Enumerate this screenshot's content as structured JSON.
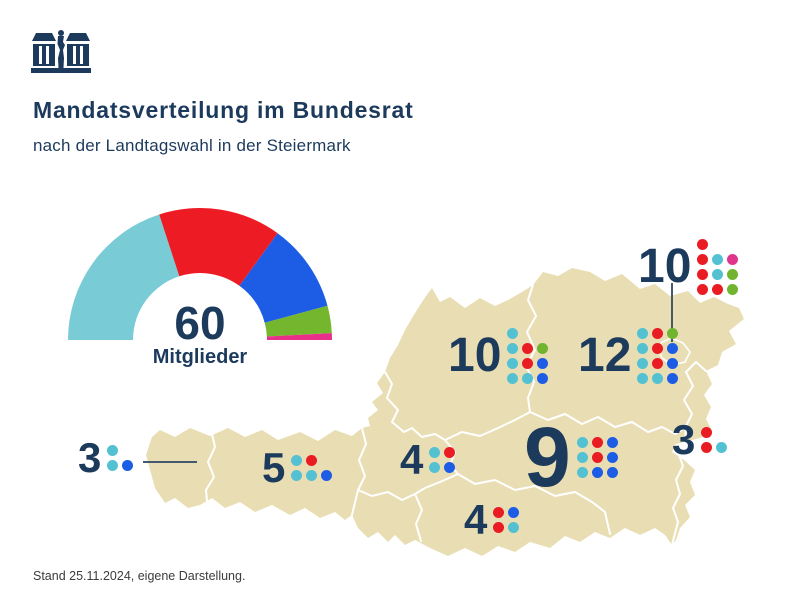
{
  "header": {
    "title": "Mandatsverteilung im Bundesrat",
    "subtitle": "nach der Landtagswahl in der Steiermark",
    "logo": "parliament-icon"
  },
  "footer": {
    "note": "Stand 25.11.2024, eigene Darstellung."
  },
  "colors": {
    "navy": "#1c3a5c",
    "map_fill": "#e9deb3",
    "map_border": "#ffffff",
    "teal": "#54c1d3",
    "teal_light": "#79cbd6",
    "red": "#e81c22",
    "blue": "#1d5ce5",
    "green": "#70b42f",
    "pink": "#e0358d",
    "leader_line": "#44586e",
    "footer_text": "#3c3c3c"
  },
  "chart_data": [
    {
      "type": "pie",
      "shape": "half-donut",
      "title": "Mandatsverteilung im Bundesrat",
      "subtitle": "nach der Landtagswahl in der Steiermark",
      "total": 60,
      "center_value": "60",
      "center_label": "Mitglieder",
      "legend_position": "none",
      "series": [
        {
          "name": "teal",
          "color": "#79cbd6",
          "value": 24
        },
        {
          "name": "red",
          "color": "#ed1c24",
          "value": 18
        },
        {
          "name": "blue",
          "color": "#1d5ce5",
          "value": 13
        },
        {
          "name": "green",
          "color": "#74b72e",
          "value": 4
        },
        {
          "name": "pink",
          "color": "#e8308a",
          "value": 1
        }
      ]
    },
    {
      "type": "map-dot-grid",
      "title": "Bundesrat seats per state",
      "map_clusters": [
        {
          "state": "Vorarlberg",
          "label": "3",
          "total": 3,
          "rows": [
            [
              "teal",
              null
            ],
            [
              "teal",
              "blue"
            ]
          ]
        },
        {
          "state": "Tirol",
          "label": "5",
          "total": 5,
          "rows": [
            [
              "teal",
              "red",
              null
            ],
            [
              "teal",
              "teal",
              "blue"
            ]
          ]
        },
        {
          "state": "Salzburg",
          "label": "4",
          "total": 4,
          "rows": [
            [
              "teal",
              "red"
            ],
            [
              "teal",
              "blue"
            ]
          ]
        },
        {
          "state": "Kaernten",
          "label": "4",
          "total": 4,
          "rows": [
            [
              "red",
              "blue"
            ],
            [
              "red",
              "teal"
            ]
          ]
        },
        {
          "state": "Steiermark",
          "label": "9",
          "total": 9,
          "rows": [
            [
              "teal",
              "red",
              "blue"
            ],
            [
              "teal",
              "red",
              "blue"
            ],
            [
              "teal",
              "blue",
              "blue"
            ]
          ]
        },
        {
          "state": "Oberoesterreich",
          "label": "10",
          "total": 10,
          "rows": [
            [
              "teal",
              null,
              null
            ],
            [
              "teal",
              "red",
              "green"
            ],
            [
              "teal",
              "red",
              "blue"
            ],
            [
              "teal",
              "teal",
              "blue"
            ]
          ]
        },
        {
          "state": "Niederoesterreich",
          "label": "12",
          "total": 12,
          "rows": [
            [
              "teal",
              "red",
              "green"
            ],
            [
              "teal",
              "red",
              "blue"
            ],
            [
              "teal",
              "red",
              "blue"
            ],
            [
              "teal",
              "teal",
              "blue"
            ]
          ]
        },
        {
          "state": "Wien",
          "label": "10",
          "total": 10,
          "rows": [
            [
              "red",
              null,
              null
            ],
            [
              "red",
              "teal",
              "pink"
            ],
            [
              "red",
              "teal",
              "green"
            ],
            [
              "red",
              "red",
              "green"
            ]
          ]
        },
        {
          "state": "Burgenland",
          "label": "3",
          "total": 3,
          "rows": [
            [
              "red",
              null
            ],
            [
              "red",
              "teal"
            ]
          ]
        }
      ]
    }
  ]
}
